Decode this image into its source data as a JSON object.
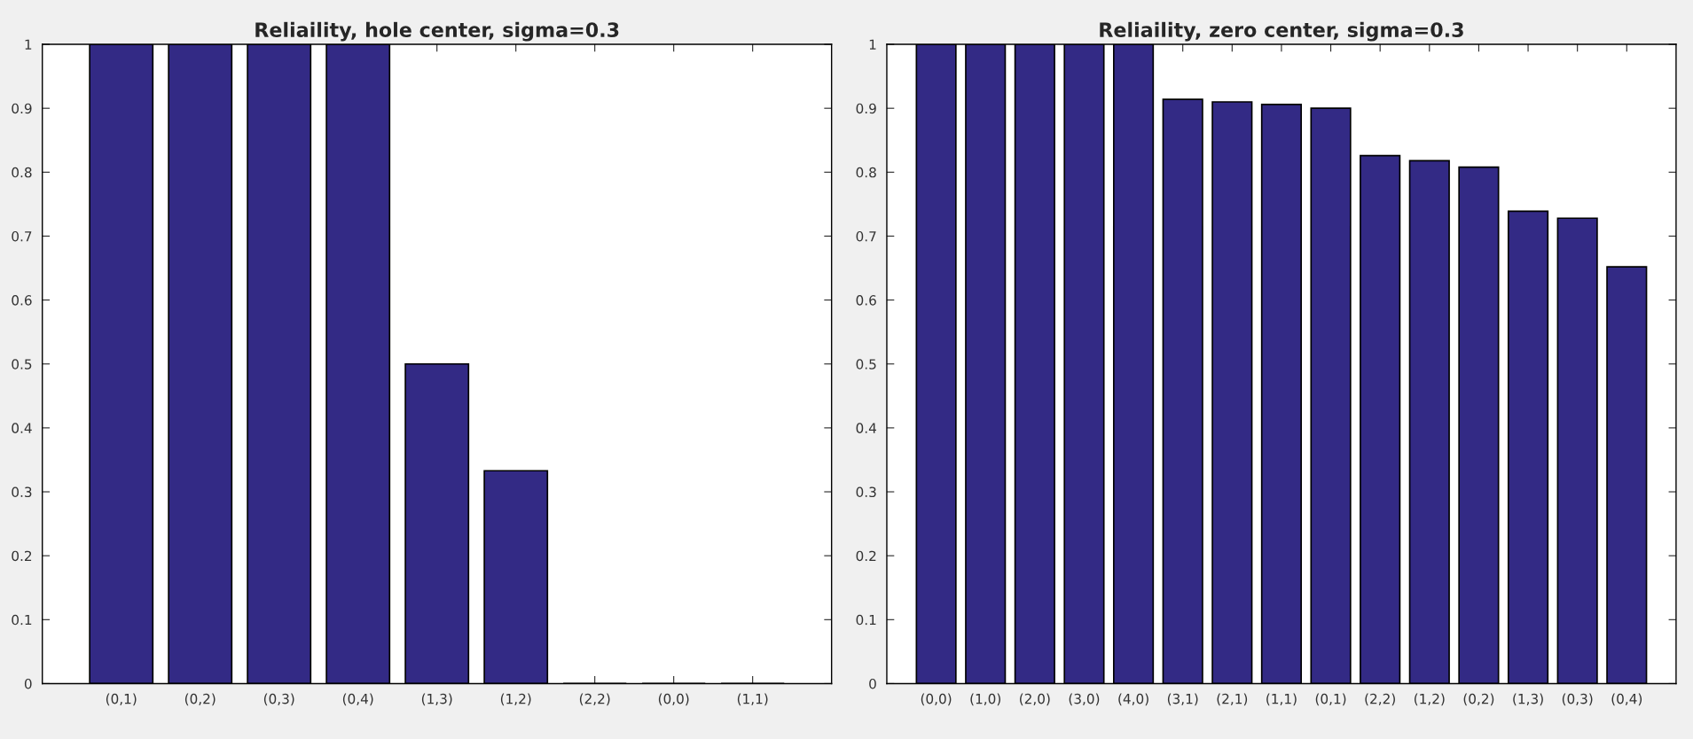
{
  "chart_data": [
    {
      "type": "bar",
      "title": "Reliaility, hole center, sigma=0.3",
      "categories": [
        "(0,1)",
        "(0,2)",
        "(0,3)",
        "(0,4)",
        "(1,3)",
        "(1,2)",
        "(2,2)",
        "(0,0)",
        "(1,1)"
      ],
      "values": [
        1,
        1,
        1,
        1,
        0.5,
        0.333,
        0,
        0,
        0
      ],
      "color": "#332a85",
      "ylim": [
        0,
        1
      ],
      "yticks": [
        0,
        0.1,
        0.2,
        0.3,
        0.4,
        0.5,
        0.6,
        0.7,
        0.8,
        0.9,
        1
      ],
      "grid": false
    },
    {
      "type": "bar",
      "title": "Reliaility, zero center, sigma=0.3",
      "categories": [
        "(0,0)",
        "(1,0)",
        "(2,0)",
        "(3,0)",
        "(4,0)",
        "(3,1)",
        "(2,1)",
        "(1,1)",
        "(0,1)",
        "(2,2)",
        "(1,2)",
        "(0,2)",
        "(1,3)",
        "(0,3)",
        "(0,4)"
      ],
      "values": [
        1,
        1,
        1,
        1,
        1,
        0.914,
        0.91,
        0.906,
        0.9,
        0.826,
        0.818,
        0.808,
        0.739,
        0.728,
        0.652
      ],
      "color": "#332a85",
      "ylim": [
        0,
        1
      ],
      "yticks": [
        0,
        0.1,
        0.2,
        0.3,
        0.4,
        0.5,
        0.6,
        0.7,
        0.8,
        0.9,
        1
      ],
      "grid": false
    }
  ]
}
